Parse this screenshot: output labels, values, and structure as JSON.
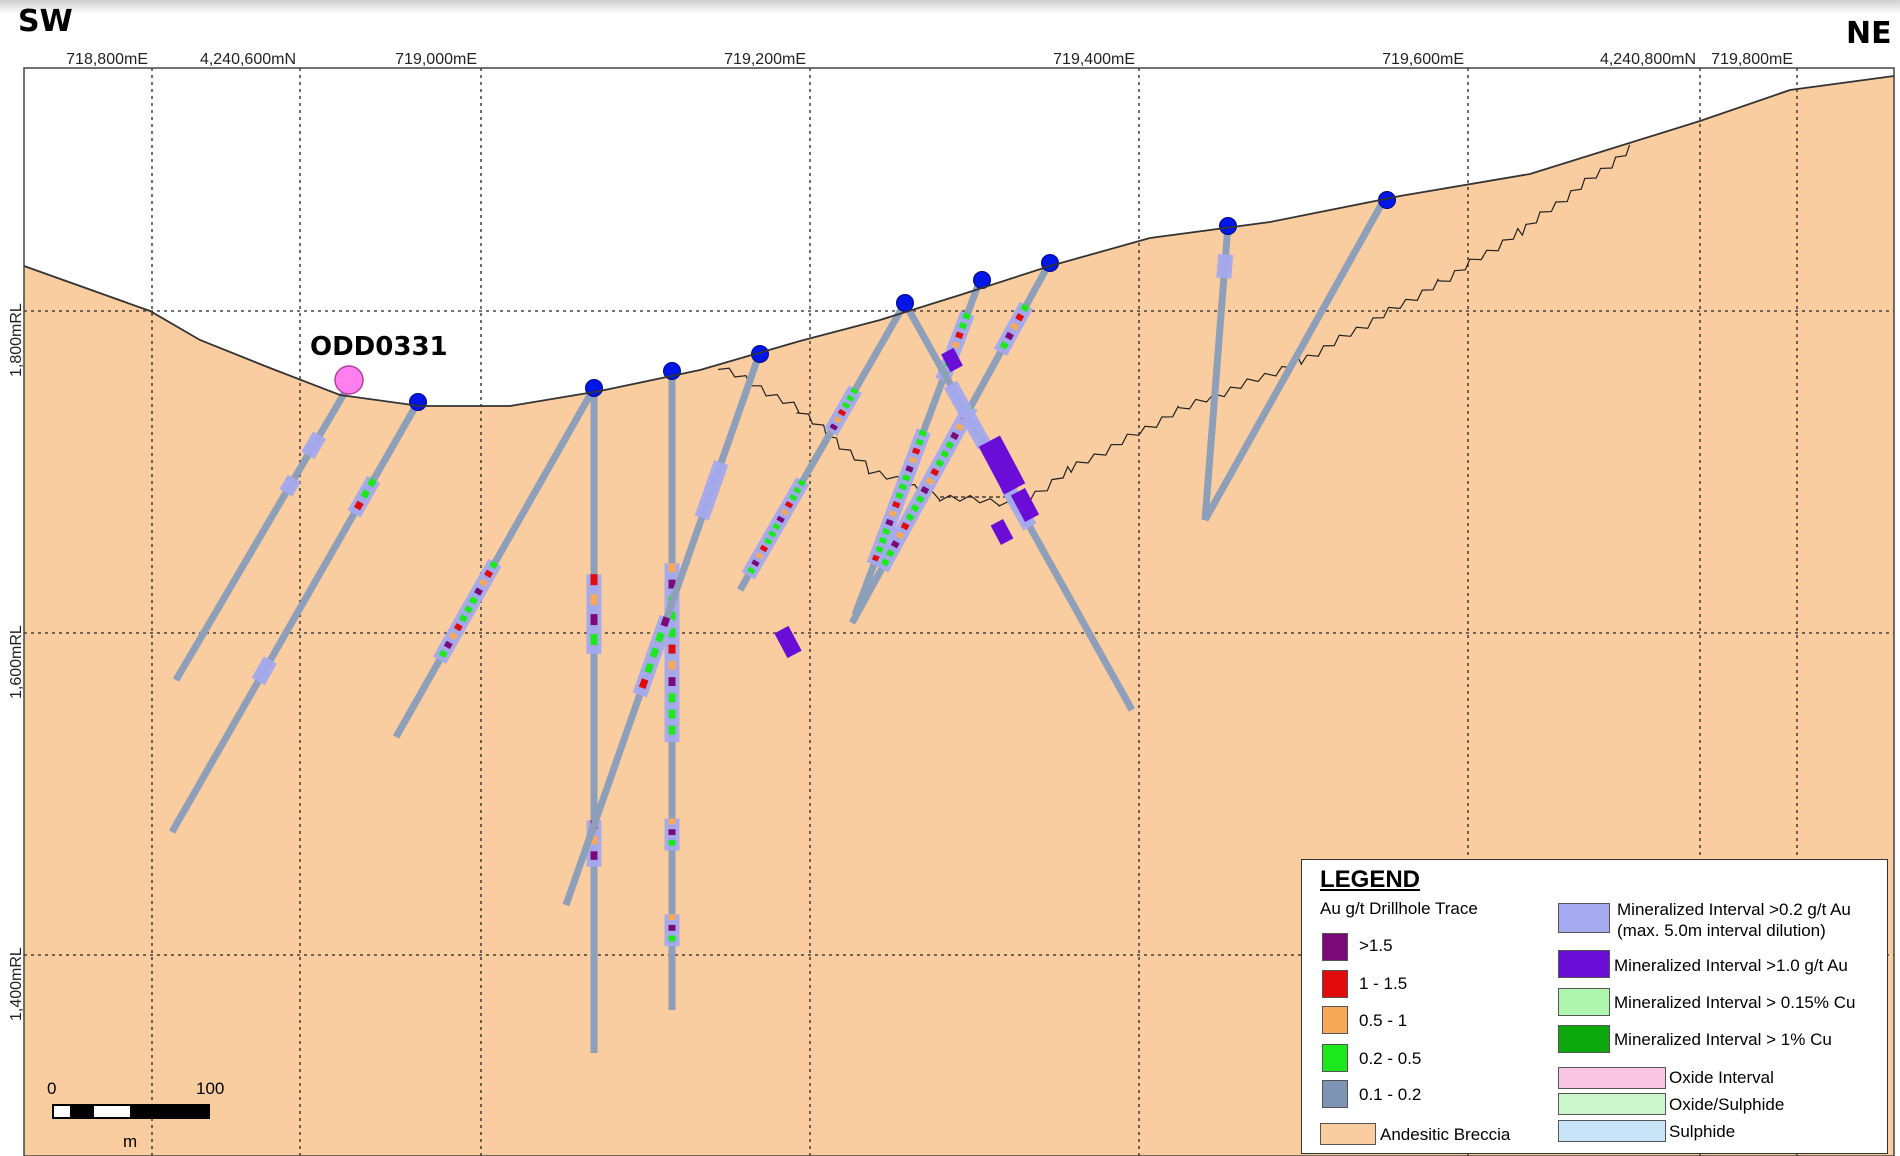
{
  "orientation": {
    "left": "SW",
    "right": "NE"
  },
  "top_axis_labels": [
    "718,800mE",
    "4,240,600mN",
    "719,000mE",
    "719,200mE",
    "719,400mE",
    "719,600mE",
    "4,240,800mN",
    "719,800mE"
  ],
  "elevation_labels": [
    "1,800mRL",
    "1,600mRL",
    "1,400mRL"
  ],
  "highlighted_hole": {
    "label": "ODD0331",
    "color": "#ff7ff0"
  },
  "scale_bar": {
    "min_label": "0",
    "max_label": "100",
    "unit": "m"
  },
  "colors": {
    "andesitic_breccia": "#f9cda0",
    "trace_base": "#8e9fba",
    "collar": "#0016e8",
    "grid_line": "#222222",
    "gold_gt_1_5": "#7a0a78",
    "gold_1_to_1_5": "#e10b0b",
    "gold_0_5_to_1": "#f7a95a",
    "gold_0_2_to_0_5": "#1de81d",
    "gold_0_1_to_0_2": "#7f93b4",
    "min_interval_gt_0_2": "#a5a9ee",
    "min_interval_gt_1_0": "#6a0ed7",
    "min_interval_gt_0_15_cu": "#aef5ae",
    "min_interval_gt_1_cu": "#0aa80a",
    "oxide": "#fbc6e3",
    "oxide_sulphide": "#ccf7cc",
    "sulphide": "#c8e4f8"
  },
  "legend": {
    "title": "LEGEND",
    "subtitle": "Au g/t Drillhole Trace",
    "au_grades": [
      ">1.5",
      "1 - 1.5",
      "0.5 - 1",
      "0.2 - 0.5",
      "0.1 - 0.2"
    ],
    "lithology": "Andesitic Breccia",
    "intervals": [
      {
        "label": "Mineralized Interval >0.2 g/t Au",
        "note": "(max. 5.0m interval dilution)"
      },
      {
        "label": "Mineralized Interval >1.0 g/t Au"
      },
      {
        "label": "Mineralized Interval > 0.15% Cu"
      },
      {
        "label": "Mineralized Interval > 1% Cu"
      }
    ],
    "oxidation": [
      "Oxide Interval",
      "Oxide/Sulphide",
      "Sulphide"
    ]
  }
}
